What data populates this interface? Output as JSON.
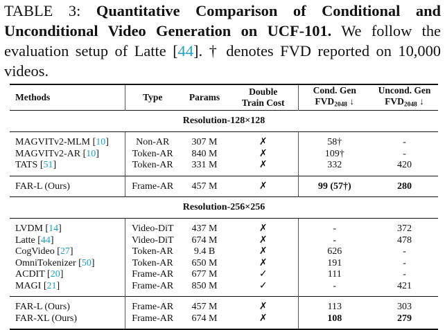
{
  "caption": [
    {
      "text": "TABLE 3: "
    },
    {
      "text": "Quantitative Comparison of Conditional and Unconditional Video Generation on UCF-101.",
      "style": "bold"
    },
    {
      "text": " We follow the evaluation setup of Latte ["
    },
    {
      "text": "44",
      "style": "cite"
    },
    {
      "text": "]. † denotes FVD reported on 10,000 videos."
    }
  ],
  "table": {
    "header": [
      [
        "Methods"
      ],
      [
        "Type"
      ],
      [
        "Params"
      ],
      [
        "Double",
        "Train Cost"
      ],
      [
        "Cond. Gen",
        [
          {
            "text": "FVD"
          },
          {
            "text": "2048",
            "style": "sub"
          },
          {
            "text": " ↓"
          }
        ]
      ],
      [
        "Uncond. Gen",
        [
          {
            "text": "FVD"
          },
          {
            "text": "2048",
            "style": "sub"
          },
          {
            "text": " ↓"
          }
        ]
      ]
    ],
    "sections": [
      {
        "title": "Resolution-128×128",
        "groups": [
          [
            [
              [
                {
                  "text": "MAGVITv2-MLM ["
                },
                {
                  "text": "10",
                  "style": "cite"
                },
                {
                  "text": "]"
                }
              ],
              "Non-AR",
              "307 M",
              "✗",
              "58†",
              "-"
            ],
            [
              [
                {
                  "text": "MAGVITv2-AR ["
                },
                {
                  "text": "10",
                  "style": "cite"
                },
                {
                  "text": "]"
                }
              ],
              "Token-AR",
              "840 M",
              "✗",
              "109†",
              "-"
            ],
            [
              [
                {
                  "text": "TATS ["
                },
                {
                  "text": "51",
                  "style": "cite"
                },
                {
                  "text": "]"
                }
              ],
              "Token-AR",
              "331 M",
              "✗",
              "332",
              "420"
            ]
          ],
          [
            [
              "FAR-L (Ours)",
              "Frame-AR",
              "457 M",
              "✗",
              [
                {
                  "text": "99 (57†)",
                  "style": "bold"
                }
              ],
              [
                {
                  "text": "280",
                  "style": "bold"
                }
              ]
            ]
          ]
        ]
      },
      {
        "title": "Resolution-256×256",
        "groups": [
          [
            [
              [
                {
                  "text": "LVDM ["
                },
                {
                  "text": "14",
                  "style": "cite"
                },
                {
                  "text": "]"
                }
              ],
              "Video-DiT",
              "437 M",
              "✗",
              "-",
              "372"
            ],
            [
              [
                {
                  "text": "Latte ["
                },
                {
                  "text": "44",
                  "style": "cite"
                },
                {
                  "text": "]"
                }
              ],
              "Video-DiT",
              "674 M",
              "✗",
              "-",
              "478"
            ],
            [
              [
                {
                  "text": "CogVideo ["
                },
                {
                  "text": "27",
                  "style": "cite"
                },
                {
                  "text": "]"
                }
              ],
              "Token-AR",
              "9.4 B",
              "✗",
              "626",
              "-"
            ],
            [
              [
                {
                  "text": "OmniTokenizer ["
                },
                {
                  "text": "50",
                  "style": "cite"
                },
                {
                  "text": "]"
                }
              ],
              "Token-AR",
              "650 M",
              "✗",
              "191",
              "-"
            ],
            [
              [
                {
                  "text": "ACDIT ["
                },
                {
                  "text": "20",
                  "style": "cite"
                },
                {
                  "text": "]"
                }
              ],
              "Frame-AR",
              "677 M",
              "✓",
              "111",
              "-"
            ],
            [
              [
                {
                  "text": "MAGI ["
                },
                {
                  "text": "21",
                  "style": "cite"
                },
                {
                  "text": "]"
                }
              ],
              "Frame-AR",
              "850 M",
              "✓",
              "-",
              "421"
            ]
          ],
          [
            [
              "FAR-L (Ours)",
              "Frame-AR",
              "457 M",
              "✗",
              "113",
              "303"
            ],
            [
              "FAR-XL (Ours)",
              "Frame-AR",
              "674 M",
              "✗",
              [
                {
                  "text": "108",
                  "style": "bold"
                }
              ],
              [
                {
                  "text": "279",
                  "style": "bold"
                }
              ]
            ]
          ]
        ]
      }
    ]
  }
}
